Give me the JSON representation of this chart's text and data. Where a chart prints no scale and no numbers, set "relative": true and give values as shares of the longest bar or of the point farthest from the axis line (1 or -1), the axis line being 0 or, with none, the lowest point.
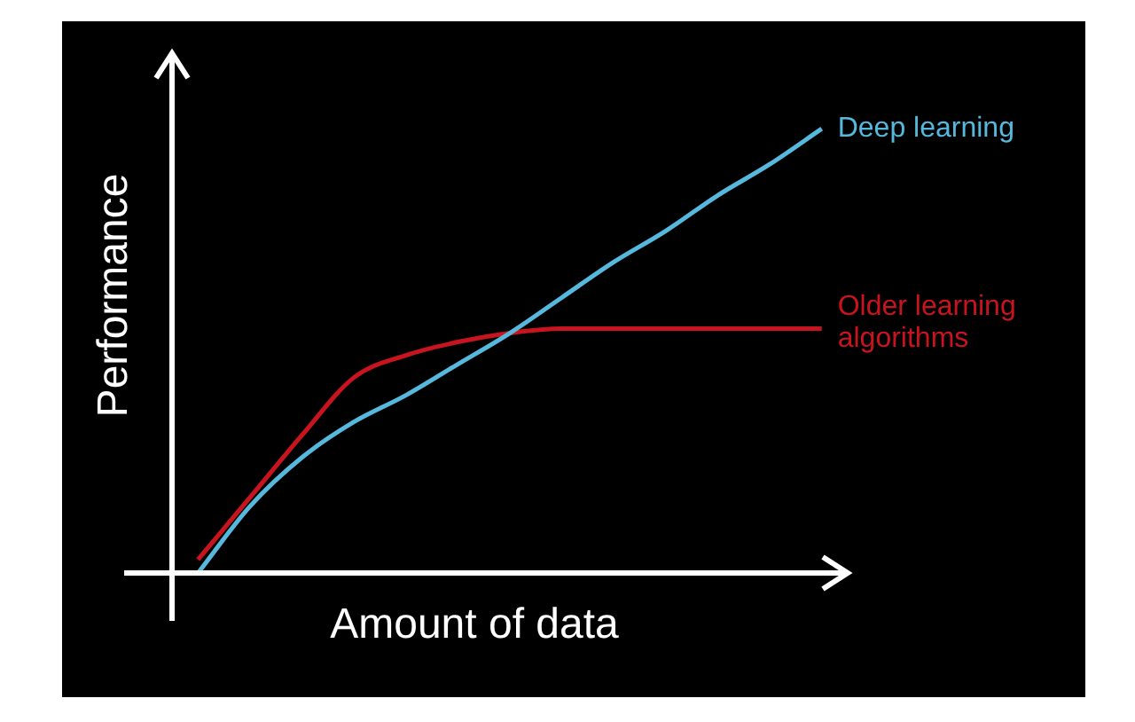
{
  "chart_data": {
    "type": "line",
    "relative": true,
    "xlabel": "Amount of data",
    "ylabel": "Performance",
    "legend": false,
    "categories": [
      null,
      null,
      null,
      null,
      null,
      null,
      null,
      null,
      null,
      null,
      null,
      null,
      null
    ],
    "series": [
      {
        "name": "Deep learning",
        "color": "#55b8dc",
        "values": [
          0,
          0.15,
          0.26,
          0.34,
          0.4,
          0.47,
          0.54,
          0.62,
          0.7,
          0.77,
          0.85,
          0.92,
          1
        ]
      },
      {
        "name": "Older learning algorithms",
        "color": "#c8141e",
        "values": [
          0.03,
          0.17,
          0.31,
          0.44,
          0.49,
          0.52,
          0.54,
          0.55,
          0.55,
          0.55,
          0.55,
          0.55,
          0.55
        ]
      }
    ]
  }
}
